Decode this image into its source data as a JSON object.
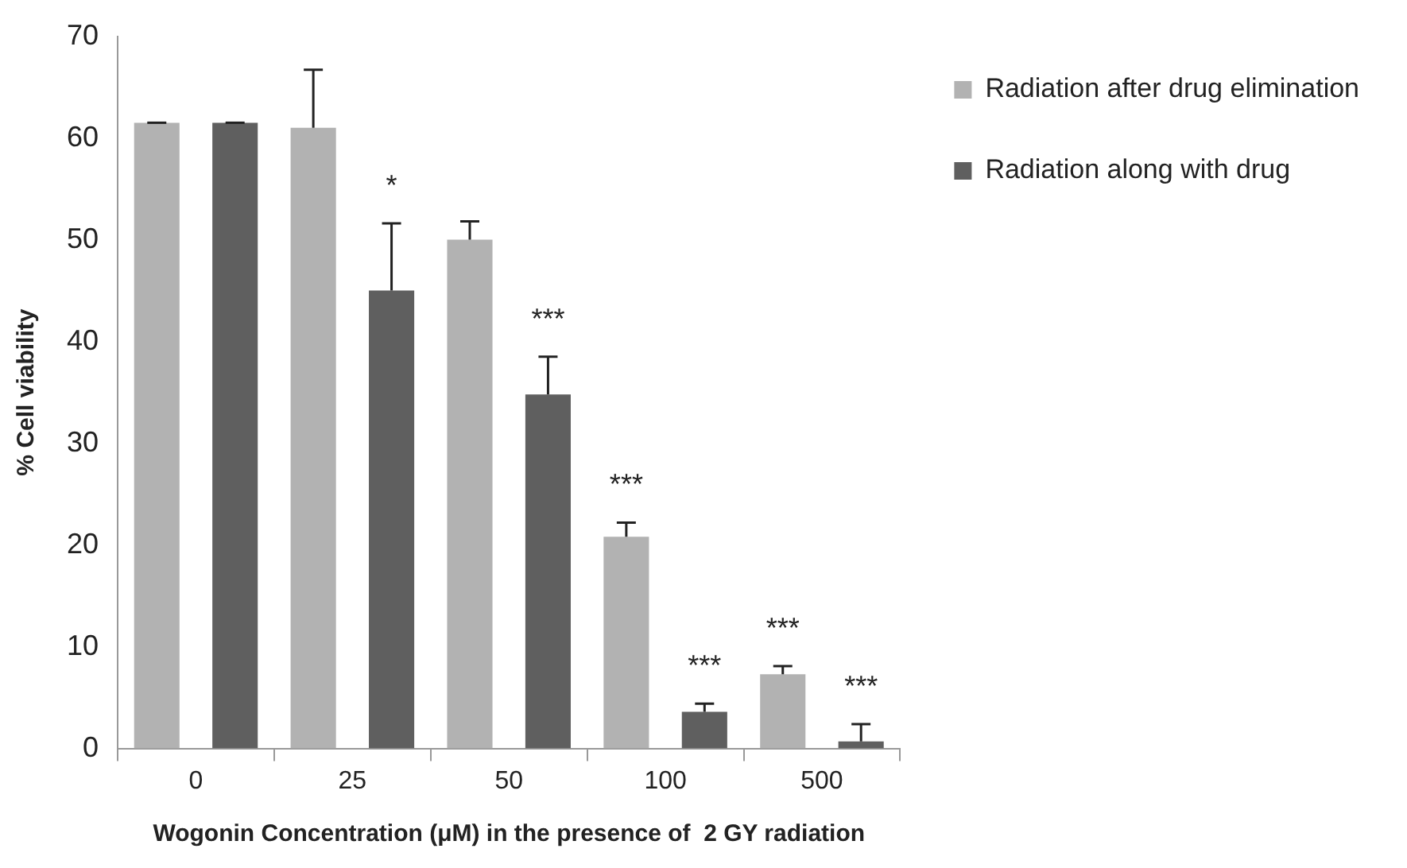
{
  "chart_data": {
    "type": "bar",
    "xlabel": "Wogonin Concentration (μM) in the presence of  2 GY radiation",
    "ylabel": "% Cell viability",
    "categories": [
      "0",
      "25",
      "50",
      "100",
      "500"
    ],
    "series": [
      {
        "name": "Radiation after drug elimination",
        "color": "#b2b2b2",
        "values": [
          61.5,
          61,
          50,
          20.8,
          7.3
        ],
        "errors": [
          [
            61.5,
            61.5
          ],
          [
            61,
            66.7
          ],
          [
            50,
            51.8
          ],
          [
            20.8,
            22.2
          ],
          [
            7.3,
            8.1
          ]
        ],
        "value_labels": [
          null,
          null,
          null,
          "***",
          "***"
        ]
      },
      {
        "name": "Radiation along with drug",
        "color": "#5f5f5f",
        "values": [
          61.5,
          45,
          34.8,
          3.6,
          0.7
        ],
        "errors": [
          [
            61.5,
            61.5
          ],
          [
            45,
            51.6
          ],
          [
            34.8,
            38.5
          ],
          [
            3.6,
            4.4
          ],
          [
            0.7,
            2.4
          ]
        ],
        "value_labels": [
          null,
          "*",
          "***",
          "***",
          "***"
        ]
      }
    ],
    "ylim": [
      0,
      70
    ],
    "yticks": [
      0,
      10,
      20,
      30,
      40,
      50,
      60,
      70
    ],
    "grid": false,
    "legend": "top right"
  }
}
